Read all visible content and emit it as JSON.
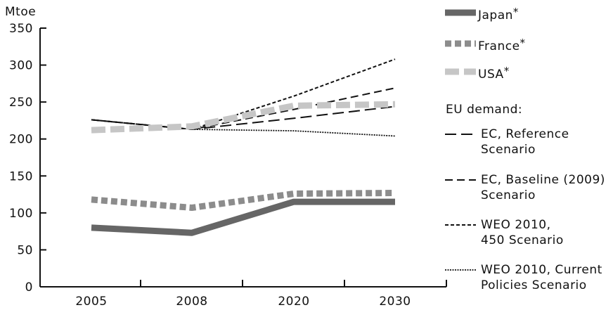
{
  "chart_data": {
    "type": "line",
    "ylabel": "Mtoe",
    "categories": [
      "2005",
      "2008",
      "2020",
      "2030"
    ],
    "ylim": [
      0,
      350
    ],
    "yticks": [
      0,
      50,
      100,
      150,
      200,
      250,
      300,
      350
    ],
    "grid": false,
    "legend_placement": "right",
    "legend_group_heading": "EU demand:",
    "series": [
      {
        "name": "Japan",
        "name_suffix": "*",
        "values": [
          80,
          73,
          115,
          115
        ],
        "color": "#666666",
        "style": "thick-solid"
      },
      {
        "name": "France",
        "name_suffix": "*",
        "values": [
          118,
          107,
          126,
          127
        ],
        "color": "#8c8c8c",
        "style": "thick-dotted"
      },
      {
        "name": "USA",
        "name_suffix": "*",
        "values": [
          212,
          217,
          245,
          247
        ],
        "color": "#c6c6c6",
        "style": "thick-dashed"
      },
      {
        "name": "EC, Reference",
        "name_line2": "Scenario",
        "values": [
          226,
          213,
          228,
          244
        ],
        "color": "#111111",
        "style": "long-dash",
        "group": "EU demand"
      },
      {
        "name": "EC, Baseline (2009)",
        "name_line2": "Scenario",
        "values": [
          226,
          213,
          240,
          269
        ],
        "color": "#111111",
        "style": "medium-dash",
        "group": "EU demand"
      },
      {
        "name": "WEO 2010,",
        "name_line2": "450 Scenario",
        "values": [
          226,
          213,
          258,
          308
        ],
        "color": "#111111",
        "style": "short-dash",
        "group": "EU demand"
      },
      {
        "name": "WEO 2010, Current",
        "name_line2": "Policies Scenario",
        "values": [
          226,
          213,
          211,
          204
        ],
        "color": "#111111",
        "style": "dotted",
        "group": "EU demand"
      }
    ]
  }
}
